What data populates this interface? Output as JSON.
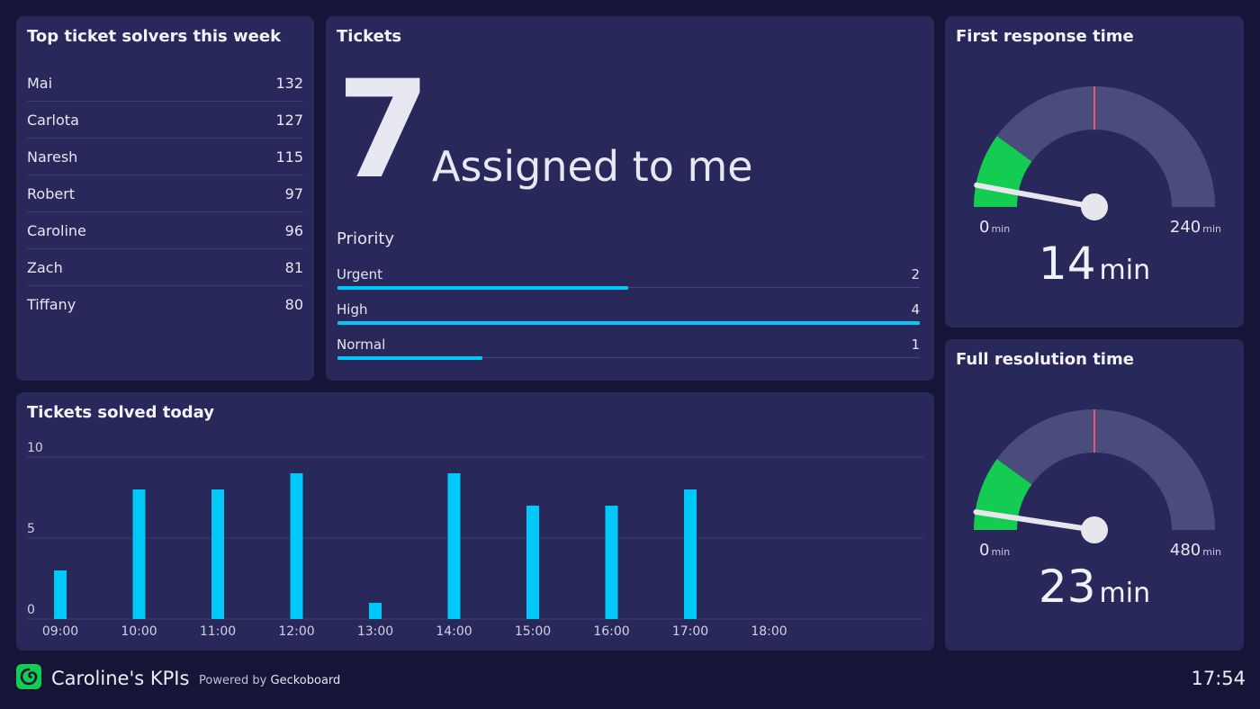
{
  "solvers": {
    "title": "Top ticket solvers this week",
    "rows": [
      {
        "name": "Mai",
        "value": "132"
      },
      {
        "name": "Carlota",
        "value": "127"
      },
      {
        "name": "Naresh",
        "value": "115"
      },
      {
        "name": "Robert",
        "value": "97"
      },
      {
        "name": "Caroline",
        "value": "96"
      },
      {
        "name": "Zach",
        "value": "81"
      },
      {
        "name": "Tiffany",
        "value": "80"
      }
    ]
  },
  "tickets": {
    "title": "Tickets",
    "count": "7",
    "label": "Assigned to me",
    "priority_title": "Priority",
    "priority_max": 4,
    "priorities": [
      {
        "label": "Urgent",
        "value": 2
      },
      {
        "label": "High",
        "value": 4
      },
      {
        "label": "Normal",
        "value": 1
      }
    ]
  },
  "first_response": {
    "title": "First response time",
    "min": 0,
    "max": 240,
    "target": 120,
    "green_until": 48,
    "value": 14,
    "min_label": "0",
    "max_label": "240",
    "unit": "min",
    "value_label": "14"
  },
  "full_resolution": {
    "title": "Full resolution time",
    "min": 0,
    "max": 480,
    "target": 240,
    "green_until": 96,
    "value": 23,
    "min_label": "0",
    "max_label": "480",
    "unit": "min",
    "value_label": "23"
  },
  "colors": {
    "background": "#161538",
    "panel": "#28295a",
    "bar": "#00c8f8",
    "gauge_track": "#4a4c7c",
    "gauge_green": "#14cc52",
    "gauge_target": "#e8526a",
    "needle": "#e6e6ec"
  },
  "chart_data": {
    "type": "bar",
    "title": "Tickets solved today",
    "categories": [
      "09:00",
      "10:00",
      "11:00",
      "12:00",
      "13:00",
      "14:00",
      "15:00",
      "16:00",
      "17:00",
      "18:00"
    ],
    "values": [
      3,
      8,
      8,
      9,
      1,
      9,
      7,
      7,
      8,
      null
    ],
    "ylim": [
      0,
      10
    ],
    "yticks": [
      0,
      5,
      10
    ],
    "grid": true
  },
  "footer": {
    "title": "Caroline's KPIs",
    "powered_prefix": "Powered by",
    "powered_brand": "Geckoboard",
    "time": "17:54"
  }
}
